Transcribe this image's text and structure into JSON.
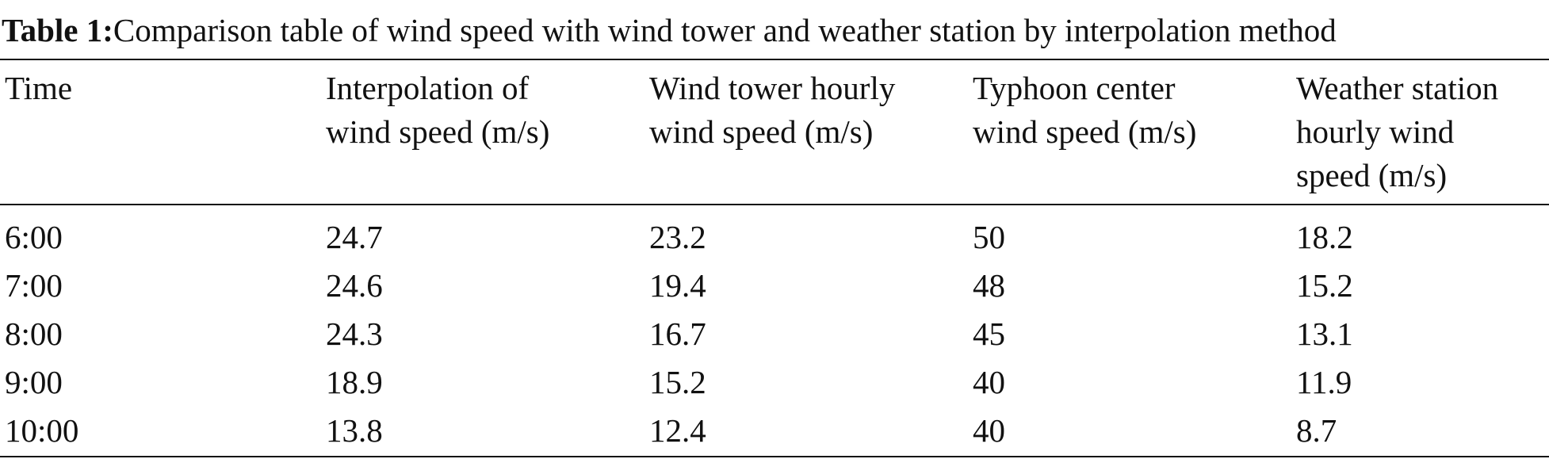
{
  "caption": {
    "label": "Table 1:",
    "text": "Comparison table of wind speed with wind tower and weather station by interpolation method"
  },
  "table": {
    "header": [
      [
        "Time"
      ],
      [
        "Interpolation of",
        "wind speed (m/s)"
      ],
      [
        "Wind tower hourly",
        "wind speed (m/s)"
      ],
      [
        "Typhoon center",
        "wind speed (m/s)"
      ],
      [
        "Weather station",
        "hourly wind",
        "speed (m/s)"
      ]
    ],
    "rows": [
      [
        "6:00",
        "24.7",
        "23.2",
        "50",
        "18.2"
      ],
      [
        "7:00",
        "24.6",
        "19.4",
        "48",
        "15.2"
      ],
      [
        "8:00",
        "24.3",
        "16.7",
        "45",
        "13.1"
      ],
      [
        "9:00",
        "18.9",
        "15.2",
        "40",
        "11.9"
      ],
      [
        "10:00",
        "13.8",
        "12.4",
        "40",
        "8.7"
      ]
    ]
  }
}
